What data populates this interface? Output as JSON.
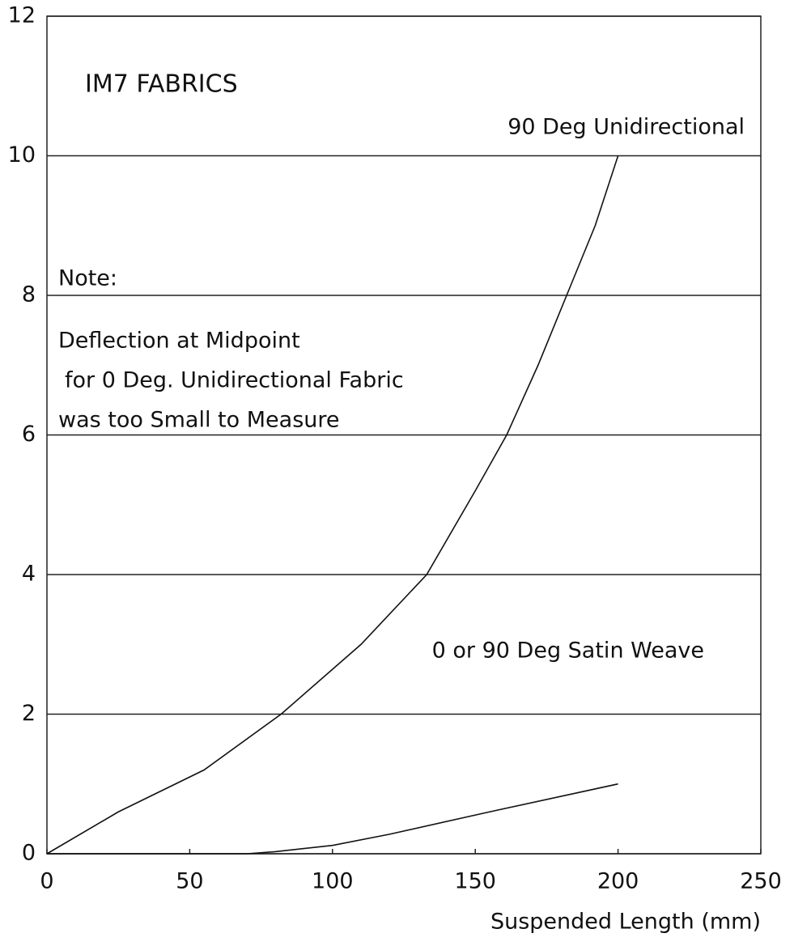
{
  "chart_data": {
    "type": "line",
    "xlabel": "Suspended Length (mm)",
    "xlim": [
      0,
      250
    ],
    "xticks": [
      0,
      50,
      100,
      150,
      200,
      250
    ],
    "ylim": [
      0,
      12
    ],
    "yticks": [
      0,
      2,
      4,
      6,
      8,
      10,
      12
    ],
    "grid": true,
    "annotations": [
      "IM7 FABRICS",
      "Note:",
      "Deflection at Midpoint",
      "for 0 Deg. Unidirectional Fabric",
      "was too Small to Measure"
    ],
    "series": [
      {
        "name": "90 Deg Unidirectional",
        "color": "#111111",
        "x": [
          0,
          25,
          55,
          82,
          110,
          133,
          150,
          161,
          172,
          182,
          192,
          200
        ],
        "values": [
          0,
          0.6,
          1.2,
          2,
          3,
          4,
          5.2,
          6,
          7,
          8,
          9,
          10
        ]
      },
      {
        "name": "0 or 90 Deg Satin Weave",
        "color": "#111111",
        "x": [
          0,
          70,
          80,
          100,
          120,
          155,
          200
        ],
        "values": [
          0,
          0,
          0.03,
          0.12,
          0.28,
          0.6,
          1
        ]
      }
    ]
  }
}
